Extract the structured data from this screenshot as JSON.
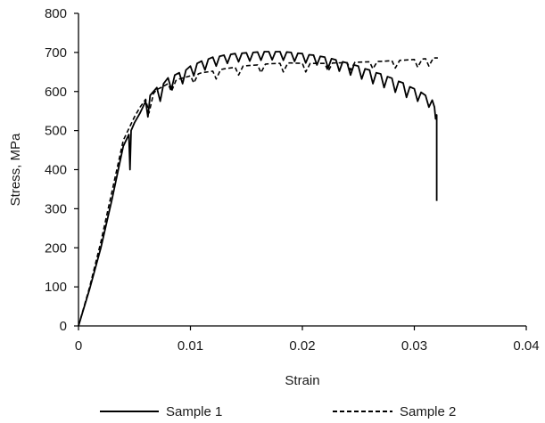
{
  "chart_data": {
    "type": "line",
    "xlabel": "Strain",
    "ylabel": "Stress, MPa",
    "xlim": [
      0,
      0.04
    ],
    "ylim": [
      0,
      800
    ],
    "x_ticks": [
      "0",
      "0.01",
      "0.02",
      "0.03",
      "0.04"
    ],
    "y_ticks": [
      "0",
      "100",
      "200",
      "300",
      "400",
      "500",
      "600",
      "700",
      "800"
    ],
    "grid": false,
    "legend": "bottom",
    "series": [
      {
        "name": "Sample 1",
        "style": "solid",
        "color": "#000000",
        "points": [
          [
            0,
            0
          ],
          [
            0.001,
            95
          ],
          [
            0.002,
            200
          ],
          [
            0.003,
            325
          ],
          [
            0.004,
            460
          ],
          [
            0.0045,
            490
          ],
          [
            0.0046,
            400
          ],
          [
            0.0047,
            500
          ],
          [
            0.005,
            520
          ],
          [
            0.0055,
            545
          ],
          [
            0.006,
            575
          ],
          [
            0.0062,
            535
          ],
          [
            0.0064,
            590
          ],
          [
            0.007,
            610
          ],
          [
            0.0073,
            575
          ],
          [
            0.0076,
            620
          ],
          [
            0.008,
            635
          ],
          [
            0.0083,
            605
          ],
          [
            0.0086,
            642
          ],
          [
            0.009,
            648
          ],
          [
            0.0093,
            620
          ],
          [
            0.0096,
            655
          ],
          [
            0.01,
            665
          ],
          [
            0.0103,
            640
          ],
          [
            0.0106,
            672
          ],
          [
            0.011,
            678
          ],
          [
            0.0113,
            655
          ],
          [
            0.0116,
            683
          ],
          [
            0.012,
            688
          ],
          [
            0.0123,
            665
          ],
          [
            0.0126,
            690
          ],
          [
            0.013,
            693
          ],
          [
            0.0133,
            672
          ],
          [
            0.0136,
            695
          ],
          [
            0.014,
            697
          ],
          [
            0.0143,
            676
          ],
          [
            0.0146,
            698
          ],
          [
            0.015,
            699
          ],
          [
            0.0153,
            678
          ],
          [
            0.0156,
            700
          ],
          [
            0.016,
            701
          ],
          [
            0.0163,
            680
          ],
          [
            0.0166,
            702
          ],
          [
            0.017,
            702
          ],
          [
            0.0173,
            681
          ],
          [
            0.0176,
            702
          ],
          [
            0.018,
            702
          ],
          [
            0.0183,
            680
          ],
          [
            0.0186,
            701
          ],
          [
            0.019,
            700
          ],
          [
            0.0193,
            677
          ],
          [
            0.0196,
            698
          ],
          [
            0.02,
            697
          ],
          [
            0.0203,
            673
          ],
          [
            0.0206,
            694
          ],
          [
            0.021,
            693
          ],
          [
            0.0213,
            668
          ],
          [
            0.0216,
            690
          ],
          [
            0.022,
            688
          ],
          [
            0.0223,
            660
          ],
          [
            0.0226,
            684
          ],
          [
            0.023,
            681
          ],
          [
            0.0233,
            652
          ],
          [
            0.0236,
            676
          ],
          [
            0.024,
            673
          ],
          [
            0.0243,
            642
          ],
          [
            0.0246,
            668
          ],
          [
            0.025,
            665
          ],
          [
            0.0253,
            632
          ],
          [
            0.0256,
            658
          ],
          [
            0.026,
            655
          ],
          [
            0.0263,
            620
          ],
          [
            0.0266,
            648
          ],
          [
            0.027,
            645
          ],
          [
            0.0273,
            610
          ],
          [
            0.0276,
            638
          ],
          [
            0.028,
            634
          ],
          [
            0.0283,
            598
          ],
          [
            0.0286,
            626
          ],
          [
            0.029,
            622
          ],
          [
            0.0293,
            585
          ],
          [
            0.0296,
            612
          ],
          [
            0.03,
            607
          ],
          [
            0.0303,
            575
          ],
          [
            0.0306,
            598
          ],
          [
            0.031,
            590
          ],
          [
            0.0313,
            560
          ],
          [
            0.0316,
            578
          ],
          [
            0.0318,
            560
          ],
          [
            0.0319,
            530
          ],
          [
            0.032,
            540
          ],
          [
            0.032,
            320
          ]
        ]
      },
      {
        "name": "Sample 2",
        "style": "dashed",
        "color": "#000000",
        "points": [
          [
            0,
            0
          ],
          [
            0.001,
            100
          ],
          [
            0.002,
            215
          ],
          [
            0.003,
            345
          ],
          [
            0.004,
            475
          ],
          [
            0.005,
            535
          ],
          [
            0.0055,
            560
          ],
          [
            0.006,
            580
          ],
          [
            0.0063,
            545
          ],
          [
            0.0067,
            595
          ],
          [
            0.007,
            605
          ],
          [
            0.0075,
            612
          ],
          [
            0.008,
            620
          ],
          [
            0.0083,
            600
          ],
          [
            0.0087,
            628
          ],
          [
            0.009,
            632
          ],
          [
            0.0095,
            636
          ],
          [
            0.01,
            640
          ],
          [
            0.0103,
            622
          ],
          [
            0.0107,
            645
          ],
          [
            0.011,
            648
          ],
          [
            0.012,
            652
          ],
          [
            0.0123,
            632
          ],
          [
            0.0127,
            656
          ],
          [
            0.013,
            658
          ],
          [
            0.014,
            662
          ],
          [
            0.0143,
            642
          ],
          [
            0.0147,
            665
          ],
          [
            0.015,
            666
          ],
          [
            0.016,
            668
          ],
          [
            0.0163,
            648
          ],
          [
            0.0167,
            670
          ],
          [
            0.017,
            671
          ],
          [
            0.018,
            672
          ],
          [
            0.0183,
            650
          ],
          [
            0.0187,
            673
          ],
          [
            0.019,
            673
          ],
          [
            0.02,
            672
          ],
          [
            0.0203,
            650
          ],
          [
            0.0207,
            672
          ],
          [
            0.021,
            672
          ],
          [
            0.022,
            672
          ],
          [
            0.0223,
            652
          ],
          [
            0.0227,
            673
          ],
          [
            0.023,
            673
          ],
          [
            0.024,
            674
          ],
          [
            0.0243,
            655
          ],
          [
            0.0247,
            675
          ],
          [
            0.025,
            675
          ],
          [
            0.026,
            676
          ],
          [
            0.0263,
            658
          ],
          [
            0.0267,
            677
          ],
          [
            0.027,
            677
          ],
          [
            0.028,
            679
          ],
          [
            0.0283,
            660
          ],
          [
            0.0287,
            680
          ],
          [
            0.029,
            680
          ],
          [
            0.03,
            682
          ],
          [
            0.0303,
            662
          ],
          [
            0.0307,
            683
          ],
          [
            0.031,
            684
          ],
          [
            0.0313,
            665
          ],
          [
            0.0317,
            686
          ],
          [
            0.0321,
            686
          ]
        ]
      }
    ]
  }
}
